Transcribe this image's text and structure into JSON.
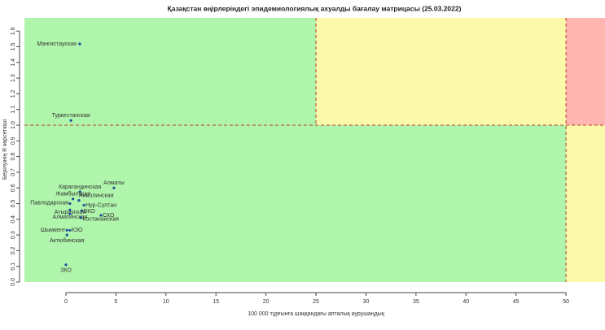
{
  "chart_data": {
    "type": "scatter",
    "title": "Қазақстан өңірлеріндегі эпидемиологиялық ахуалды бағалау матрицасы  (25.03.2022)",
    "x_label": "100 000 тұрғынға шаққандағы апталық аурушаңдық",
    "y_label": "Берілуінің R көрсеткіші",
    "xlim": [
      -4.15,
      53.9
    ],
    "ylim": [
      0,
      1.684
    ],
    "xticks": [
      0,
      5,
      10,
      15,
      20,
      25,
      30,
      35,
      40,
      45,
      50
    ],
    "yticks": [
      {
        "value": 0,
        "label": "0.0"
      },
      {
        "value": 0.1,
        "label": "0.1"
      },
      {
        "value": 0.2,
        "label": "0.2"
      },
      {
        "value": 0.3,
        "label": "0.3"
      },
      {
        "value": 0.4,
        "label": "0.4"
      },
      {
        "value": 0.5,
        "label": "0.5"
      },
      {
        "value": 0.6,
        "label": "0.6"
      },
      {
        "value": 0.7,
        "label": "0.7"
      },
      {
        "value": 0.8,
        "label": "0.8"
      },
      {
        "value": 0.9,
        "label": "0.9"
      },
      {
        "value": 1,
        "label": "1.0"
      },
      {
        "value": 1.1,
        "label": "1.1"
      },
      {
        "value": 1.2,
        "label": "1.2"
      },
      {
        "value": 1.3,
        "label": "1.3"
      },
      {
        "value": 1.4,
        "label": "1.4"
      },
      {
        "value": 1.5,
        "label": "1.5"
      },
      {
        "value": 1.6,
        "label": "1.6"
      }
    ],
    "reference_lines": {
      "x": [
        25,
        50
      ],
      "y": 1,
      "color": "#c0392b"
    },
    "zone_colors": {
      "low": "#aff5ab",
      "mid": "#fbf9aa",
      "high": "#ffb6b1"
    },
    "color": "#1f4e9a",
    "points": {
      "labels": [
        "Мангистауская",
        "Туркестанская",
        "Карагандинская",
        "Алматы",
        "Жамбылская",
        "Акмолинская",
        "Павлодарская",
        "Нур-Султан",
        "ВКО",
        "Атырауская",
        "Алматинская",
        "СКО",
        "Костанайская",
        "Шымкент",
        "КЗО",
        "Актюбинская",
        "ЗКО"
      ],
      "x": [
        1.38,
        0.5,
        1.4,
        4.8,
        0.7,
        1.3,
        0.4,
        1.8,
        1.6,
        0.4,
        0.4,
        3.5,
        1.5,
        0.1,
        0.4,
        0.1,
        0
      ],
      "y": [
        1.518,
        1.03,
        0.575,
        0.6,
        0.53,
        0.52,
        0.5,
        0.49,
        0.455,
        0.46,
        0.435,
        0.425,
        0.41,
        0.33,
        0.33,
        0.3,
        0.11
      ]
    }
  }
}
